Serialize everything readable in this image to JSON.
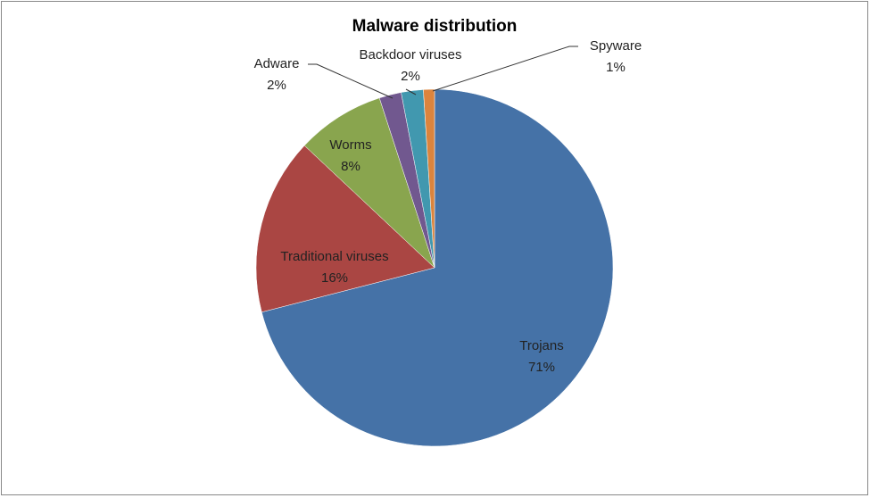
{
  "chart_data": {
    "type": "pie",
    "title": "Malware distribution",
    "categories": [
      "Trojans",
      "Traditional viruses",
      "Worms",
      "Adware",
      "Backdoor viruses",
      "Spyware"
    ],
    "values": [
      71,
      16,
      8,
      2,
      2,
      1
    ],
    "value_labels": [
      "71%",
      "16%",
      "8%",
      "2%",
      "2%",
      "1%"
    ],
    "colors": [
      "#4572a7",
      "#aa4643",
      "#89a54e",
      "#71588f",
      "#4198af",
      "#db843d"
    ]
  }
}
